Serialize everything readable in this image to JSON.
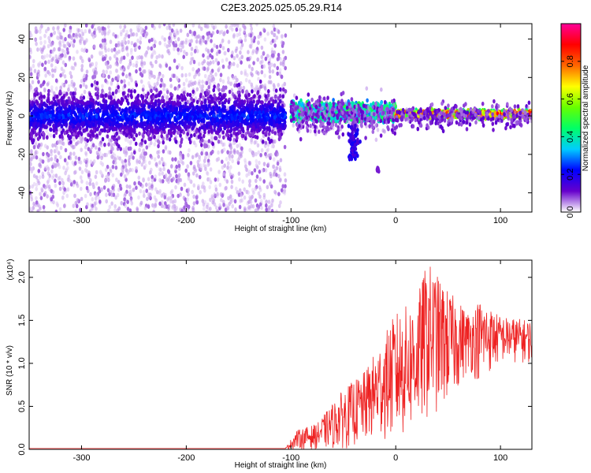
{
  "title": "C2E3.2025.025.05.29.R14",
  "chart_data": [
    {
      "type": "heatmap",
      "xlabel": "Height of straight line (km)",
      "ylabel": "Frequency (Hz)",
      "xlim": [
        -350,
        130
      ],
      "ylim": [
        -50,
        48
      ],
      "xticks": [
        -300,
        -200,
        -100,
        0,
        100
      ],
      "yticks": [
        -40,
        -20,
        0,
        20,
        40
      ],
      "colorbar": {
        "label": "Normalized spectral amplitude",
        "range": [
          0,
          1
        ],
        "ticks": [
          0.0,
          0.2,
          0.4,
          0.6,
          0.8
        ],
        "tick_labels": [
          "0.0",
          "0.2",
          "0.4",
          "0.6",
          "0.8"
        ],
        "colormap": [
          "#ffffff",
          "#6600cc",
          "#0000ff",
          "#00ccff",
          "#00ff66",
          "#66ff00",
          "#ffff00",
          "#ff6600",
          "#ff0000",
          "#ff0099"
        ]
      },
      "description_regions": [
        {
          "x_range": [
            -350,
            -105
          ],
          "freq_center": 0,
          "band_halfwidth": 8,
          "amplitude": 0.1,
          "scatter": "broad"
        },
        {
          "x_range": [
            -100,
            0
          ],
          "freq_center": 2,
          "band_halfwidth": 3,
          "amplitude": 0.45,
          "scatter": "narrow"
        },
        {
          "x_range": [
            0,
            130
          ],
          "freq_center": 1,
          "band_halfwidth": 1.5,
          "amplitude": 0.9,
          "scatter": "narrow"
        }
      ]
    },
    {
      "type": "line",
      "xlabel": "Height of straight line (km)",
      "ylabel": "SNR (10 * v/v)",
      "y_scale_label": "(x10⁴)",
      "xlim": [
        -350,
        130
      ],
      "ylim": [
        0,
        2.2
      ],
      "xticks": [
        -300,
        -200,
        -100,
        0,
        100
      ],
      "yticks": [
        0.0,
        0.5,
        1.0,
        1.5,
        2.0
      ],
      "ytick_labels": [
        "0.0",
        "0.5",
        "1.0",
        "1.5",
        "2.0"
      ],
      "series": [
        {
          "color": "#ee2222",
          "envelope": [
            {
              "x": -350,
              "low": 0.0,
              "high": 0.02
            },
            {
              "x": -105,
              "low": 0.0,
              "high": 0.02
            },
            {
              "x": -95,
              "low": 0.0,
              "high": 0.22
            },
            {
              "x": -75,
              "low": 0.0,
              "high": 0.3
            },
            {
              "x": -50,
              "low": 0.0,
              "high": 0.7
            },
            {
              "x": -30,
              "low": 0.05,
              "high": 0.9
            },
            {
              "x": -10,
              "low": 0.1,
              "high": 1.35
            },
            {
              "x": 0,
              "low": 0.05,
              "high": 1.6
            },
            {
              "x": 20,
              "low": 0.2,
              "high": 1.75
            },
            {
              "x": 30,
              "low": 0.3,
              "high": 2.2
            },
            {
              "x": 50,
              "low": 0.5,
              "high": 1.85
            },
            {
              "x": 70,
              "low": 0.9,
              "high": 1.6
            },
            {
              "x": 80,
              "low": 0.75,
              "high": 1.75
            },
            {
              "x": 100,
              "low": 1.0,
              "high": 1.55
            },
            {
              "x": 130,
              "low": 1.0,
              "high": 1.5
            }
          ]
        }
      ]
    }
  ]
}
